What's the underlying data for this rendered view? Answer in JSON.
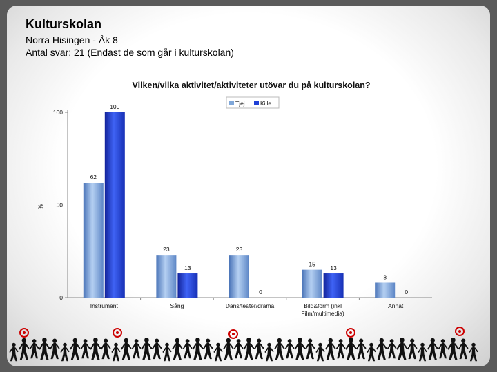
{
  "header": {
    "title": "Kulturskolan",
    "subtitle": "Norra Hisingen - Åk 8",
    "responses": "Antal svar: 21 (Endast de som går i kulturskolan)"
  },
  "colors": {
    "tjej": "#7fa7d9",
    "kille": "#1f3fd6"
  },
  "chart_data": {
    "type": "bar",
    "title": "Vilken/vilka aktivitet/aktiviteter utövar du på kulturskolan?",
    "ylabel": "%",
    "xlabel": "",
    "ylim": [
      0,
      100
    ],
    "yticks": [
      0,
      50,
      100
    ],
    "categories": [
      "Instrument",
      "Sång",
      "Dans/teater/drama",
      "Bild&form (inkl Film/multimedia)",
      "Annat"
    ],
    "series": [
      {
        "name": "Tjej",
        "values": [
          62,
          23,
          23,
          15,
          8
        ]
      },
      {
        "name": "Kille",
        "values": [
          100,
          13,
          0,
          13,
          0
        ]
      }
    ],
    "legend": "top-right",
    "grid": false
  }
}
